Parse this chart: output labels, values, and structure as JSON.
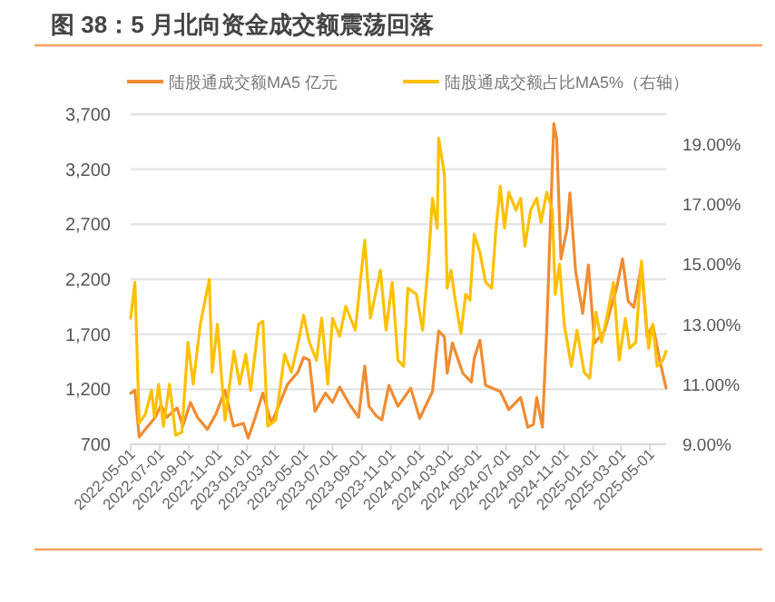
{
  "chart_data": {
    "type": "line",
    "title": "图 38：5 月北向资金成交额震荡回落",
    "xlim": [
      "2022-05-01",
      "2025-06-04"
    ],
    "xticks": [
      "2022-05-01",
      "2022-07-01",
      "2022-09-01",
      "2022-11-01",
      "2023-01-01",
      "2023-03-01",
      "2023-05-01",
      "2023-07-01",
      "2023-09-01",
      "2023-11-01",
      "2024-01-01",
      "2024-03-01",
      "2024-05-01",
      "2024-07-01",
      "2024-09-01",
      "2024-11-01",
      "2025-01-01",
      "2025-03-01",
      "2025-05-01"
    ],
    "ylim": [
      700,
      3700
    ],
    "yticks": [
      700,
      {
        "value": 1200,
        "label": "1,200"
      },
      {
        "value": 1700,
        "label": "1,700"
      },
      {
        "value": 2200,
        "label": "2,200"
      },
      {
        "value": 2700,
        "label": "2,700"
      },
      {
        "value": 3200,
        "label": "3,200"
      },
      {
        "value": 3700,
        "label": "3,700"
      }
    ],
    "y2lim": [
      9,
      20
    ],
    "y2ticks": [
      {
        "value": 9,
        "label": "9.00%"
      },
      {
        "value": 11,
        "label": "11.00%"
      },
      {
        "value": 13,
        "label": "13.00%"
      },
      {
        "value": 15,
        "label": "15.00%"
      },
      {
        "value": 17,
        "label": "17.00%"
      },
      {
        "value": 19,
        "label": "19.00%"
      }
    ],
    "grid": "y",
    "legend": "top",
    "marker": "none",
    "line_style": "solid",
    "series": [
      {
        "name": "陆股通成交额MA5 亿元",
        "color": "#f08c32",
        "x": [
          "2022-05-01",
          "2022-05-10",
          "2022-05-19",
          "2022-06-01",
          "2022-06-22",
          "2022-07-04",
          "2022-07-16",
          "2022-08-07",
          "2022-08-19",
          "2022-09-04",
          "2022-09-19",
          "2022-10-10",
          "2022-10-28",
          "2022-11-16",
          "2022-12-04",
          "2022-12-25",
          "2023-01-04",
          "2023-01-19",
          "2023-02-04",
          "2023-02-22",
          "2023-03-10",
          "2023-03-28",
          "2023-04-19",
          "2023-05-01",
          "2023-05-13",
          "2023-05-25",
          "2023-06-16",
          "2023-07-01",
          "2023-07-16",
          "2023-08-07",
          "2023-08-25",
          "2023-09-07",
          "2023-09-16",
          "2023-10-01",
          "2023-10-13",
          "2023-10-28",
          "2023-11-16",
          "2023-12-13",
          "2024-01-01",
          "2024-01-28",
          "2024-02-10",
          "2024-02-22",
          "2024-02-28",
          "2024-03-10",
          "2024-04-01",
          "2024-04-19",
          "2024-04-25",
          "2024-05-07",
          "2024-05-19",
          "2024-06-19",
          "2024-07-07",
          "2024-08-01",
          "2024-08-16",
          "2024-08-28",
          "2024-09-04",
          "2024-09-16",
          "2024-09-25",
          "2024-10-10",
          "2024-10-16",
          "2024-10-25",
          "2024-11-07",
          "2024-11-13",
          "2024-11-25",
          "2024-12-10",
          "2024-12-22",
          "2025-01-04",
          "2025-01-25",
          "2025-02-19",
          "2025-03-04",
          "2025-03-16",
          "2025-03-28",
          "2025-04-13",
          "2025-04-25",
          "2025-05-07",
          "2025-05-22",
          "2025-06-04"
        ],
        "values": [
          1165,
          1190,
          765,
          835,
          945,
          1055,
          945,
          1030,
          865,
          1080,
          945,
          835,
          975,
          1190,
          865,
          890,
          755,
          945,
          1165,
          890,
          1055,
          1245,
          1355,
          1490,
          1465,
          1000,
          1165,
          1080,
          1220,
          1055,
          945,
          1410,
          1045,
          960,
          920,
          1235,
          1045,
          1210,
          935,
          1180,
          1730,
          1675,
          1345,
          1620,
          1345,
          1265,
          1480,
          1645,
          1235,
          1180,
          1015,
          1125,
          855,
          880,
          1125,
          855,
          1730,
          3615,
          3480,
          2385,
          2660,
          2985,
          2275,
          1890,
          2330,
          1620,
          1730,
          2110,
          2385,
          2000,
          1945,
          2330,
          1675,
          1785,
          1455,
          1210
        ]
      },
      {
        "name": "陆股通成交额占比MA5%（右轴）",
        "color": "#ffc000",
        "axis": "y2",
        "x": [
          "2022-05-01",
          "2022-05-10",
          "2022-05-19",
          "2022-06-01",
          "2022-06-14",
          "2022-06-20",
          "2022-06-29",
          "2022-07-09",
          "2022-07-22",
          "2022-08-04",
          "2022-08-17",
          "2022-08-30",
          "2022-09-10",
          "2022-09-25",
          "2022-10-14",
          "2022-10-20",
          "2022-10-31",
          "2022-11-16",
          "2022-12-05",
          "2022-12-17",
          "2022-12-30",
          "2023-01-09",
          "2023-01-26",
          "2023-02-04",
          "2023-02-14",
          "2023-03-03",
          "2023-03-22",
          "2023-04-05",
          "2023-04-17",
          "2023-05-01",
          "2023-05-13",
          "2023-05-28",
          "2023-06-08",
          "2023-06-21",
          "2023-07-01",
          "2023-07-16",
          "2023-07-29",
          "2023-08-18",
          "2023-09-07",
          "2023-09-19",
          "2023-10-10",
          "2023-10-22",
          "2023-11-04",
          "2023-11-16",
          "2023-11-28",
          "2023-12-07",
          "2023-12-25",
          "2024-01-07",
          "2024-01-19",
          "2024-01-28",
          "2024-02-07",
          "2024-02-10",
          "2024-02-22",
          "2024-02-28",
          "2024-03-07",
          "2024-03-16",
          "2024-03-28",
          "2024-04-07",
          "2024-04-16",
          "2024-04-25",
          "2024-05-07",
          "2024-05-19",
          "2024-06-01",
          "2024-06-10",
          "2024-06-19",
          "2024-06-28",
          "2024-07-07",
          "2024-07-22",
          "2024-08-01",
          "2024-08-10",
          "2024-08-22",
          "2024-09-04",
          "2024-09-13",
          "2024-09-25",
          "2024-10-07",
          "2024-10-13",
          "2024-10-22",
          "2024-11-01",
          "2024-11-16",
          "2024-11-28",
          "2024-12-13",
          "2024-12-25",
          "2025-01-07",
          "2025-01-19",
          "2025-02-01",
          "2025-02-13",
          "2025-02-25",
          "2025-03-10",
          "2025-03-19",
          "2025-04-01",
          "2025-04-13",
          "2025-04-28",
          "2025-05-07",
          "2025-05-16",
          "2025-05-28",
          "2025-06-04"
        ],
        "values": [
          13.2,
          14.4,
          9.7,
          10.0,
          10.8,
          9.9,
          11.0,
          9.6,
          11.0,
          9.3,
          9.4,
          12.4,
          11.0,
          13.0,
          14.5,
          11.4,
          13.0,
          9.8,
          12.1,
          11.0,
          12.0,
          10.8,
          13.0,
          13.1,
          9.6,
          9.8,
          12.0,
          11.4,
          12.2,
          13.3,
          12.4,
          11.8,
          13.2,
          11.0,
          13.2,
          12.6,
          13.6,
          12.8,
          15.8,
          13.2,
          14.8,
          12.8,
          14.4,
          11.8,
          11.6,
          14.2,
          14.0,
          12.8,
          15.0,
          17.2,
          16.2,
          19.2,
          18.0,
          14.2,
          14.8,
          13.8,
          12.7,
          14.0,
          13.8,
          16.0,
          15.4,
          14.4,
          14.2,
          16.2,
          17.6,
          16.2,
          17.4,
          16.8,
          17.2,
          15.6,
          16.8,
          17.2,
          16.4,
          17.4,
          16.8,
          14.0,
          15.0,
          13.0,
          11.6,
          12.8,
          11.4,
          11.2,
          13.4,
          12.4,
          13.4,
          14.4,
          11.8,
          13.2,
          12.2,
          12.4,
          15.1,
          12.2,
          13.0,
          11.6,
          11.8,
          12.1
        ]
      }
    ]
  }
}
